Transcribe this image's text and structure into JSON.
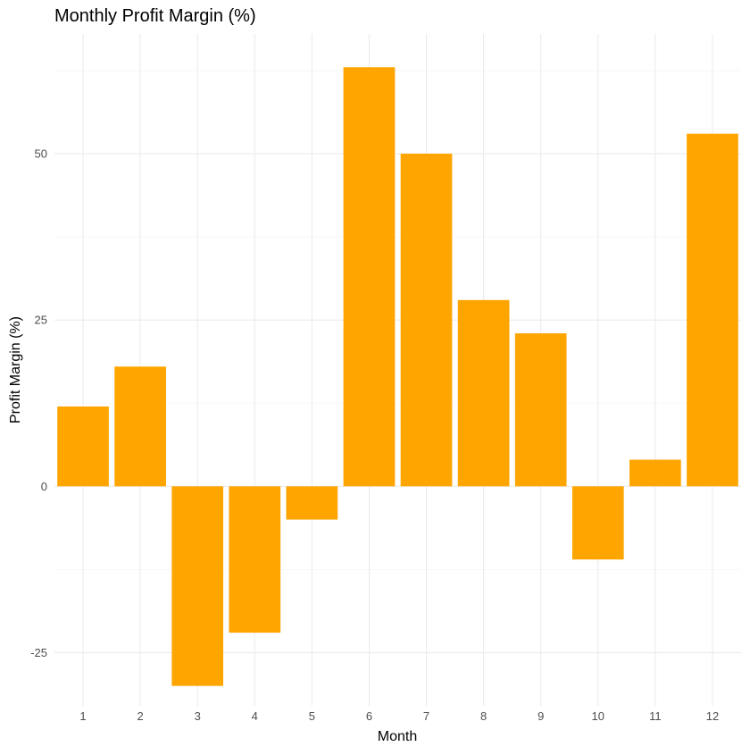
{
  "chart_data": {
    "type": "bar",
    "title": "Monthly Profit Margin (%)",
    "xlabel": "Month",
    "ylabel": "Profit Margin (%)",
    "categories": [
      "1",
      "2",
      "3",
      "4",
      "5",
      "6",
      "7",
      "8",
      "9",
      "10",
      "11",
      "12"
    ],
    "values": [
      12,
      18,
      -30,
      -22,
      -5,
      63,
      50,
      28,
      23,
      -11,
      4,
      53
    ],
    "ylim": [
      -33,
      68
    ],
    "yticks": [
      -25,
      0,
      25,
      50
    ],
    "yticks_minor": [
      -12.5,
      12.5,
      37.5,
      62.5
    ],
    "grid": true,
    "legend": "none",
    "bar_color": "#FFA500",
    "grid_color": "#EBEBEB"
  }
}
